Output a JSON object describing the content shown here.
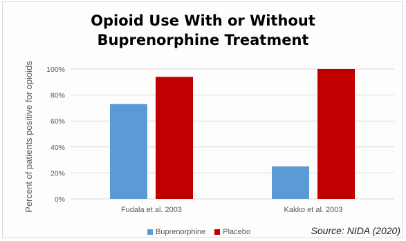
{
  "chart_data": {
    "type": "bar",
    "title": "Opioid Use With or Without\nBuprenorphine Treatment",
    "xlabel": "",
    "ylabel": "Percent of patients positive for opioids",
    "categories": [
      "Fudala et al. 2003",
      "Kakko et al. 2003"
    ],
    "series": [
      {
        "name": "Buprenorphine",
        "values": [
          73,
          25
        ],
        "color": "#5b9bd5"
      },
      {
        "name": "Placebo",
        "values": [
          94,
          100
        ],
        "color": "#c00000"
      }
    ],
    "ylim": [
      0,
      100
    ],
    "yticks": [
      "0%",
      "20%",
      "40%",
      "60%",
      "80%",
      "100%"
    ],
    "grid": true,
    "legend_position": "bottom"
  },
  "source_note": "Source: NIDA (2020)"
}
